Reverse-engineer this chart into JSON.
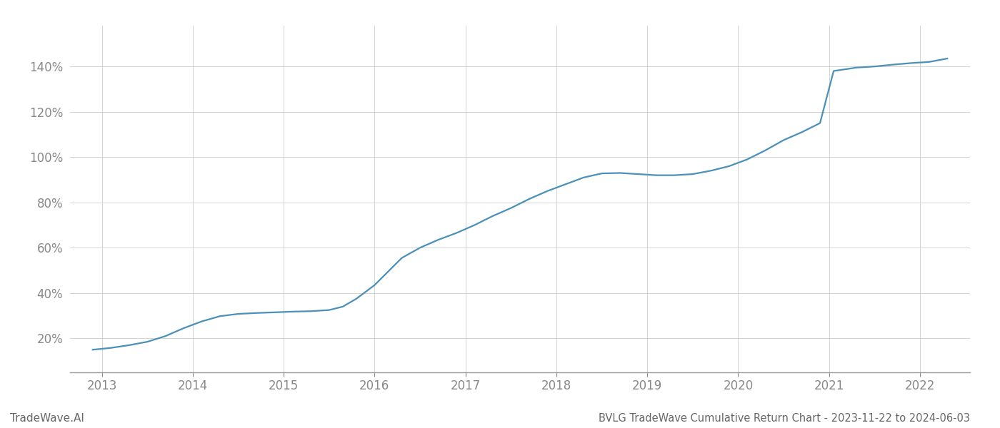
{
  "title": "BVLG TradeWave Cumulative Return Chart - 2023-11-22 to 2024-06-03",
  "watermark": "TradeWave.AI",
  "line_color": "#4a90b8",
  "background_color": "#ffffff",
  "grid_color": "#cccccc",
  "x_years": [
    2013,
    2014,
    2015,
    2016,
    2017,
    2018,
    2019,
    2020,
    2021,
    2022
  ],
  "data_points": [
    [
      2012.9,
      0.15
    ],
    [
      2013.1,
      0.158
    ],
    [
      2013.3,
      0.17
    ],
    [
      2013.5,
      0.185
    ],
    [
      2013.7,
      0.21
    ],
    [
      2013.9,
      0.245
    ],
    [
      2014.1,
      0.275
    ],
    [
      2014.3,
      0.298
    ],
    [
      2014.5,
      0.308
    ],
    [
      2014.7,
      0.312
    ],
    [
      2014.9,
      0.315
    ],
    [
      2015.1,
      0.318
    ],
    [
      2015.3,
      0.32
    ],
    [
      2015.5,
      0.325
    ],
    [
      2015.65,
      0.34
    ],
    [
      2015.8,
      0.375
    ],
    [
      2016.0,
      0.435
    ],
    [
      2016.15,
      0.495
    ],
    [
      2016.3,
      0.555
    ],
    [
      2016.5,
      0.6
    ],
    [
      2016.7,
      0.635
    ],
    [
      2016.9,
      0.665
    ],
    [
      2017.1,
      0.7
    ],
    [
      2017.3,
      0.74
    ],
    [
      2017.5,
      0.775
    ],
    [
      2017.7,
      0.815
    ],
    [
      2017.9,
      0.85
    ],
    [
      2018.1,
      0.88
    ],
    [
      2018.3,
      0.91
    ],
    [
      2018.5,
      0.928
    ],
    [
      2018.7,
      0.93
    ],
    [
      2018.9,
      0.925
    ],
    [
      2019.1,
      0.92
    ],
    [
      2019.3,
      0.92
    ],
    [
      2019.5,
      0.925
    ],
    [
      2019.7,
      0.94
    ],
    [
      2019.9,
      0.96
    ],
    [
      2020.1,
      0.99
    ],
    [
      2020.3,
      1.03
    ],
    [
      2020.5,
      1.075
    ],
    [
      2020.7,
      1.11
    ],
    [
      2020.9,
      1.15
    ],
    [
      2021.05,
      1.38
    ],
    [
      2021.3,
      1.395
    ],
    [
      2021.5,
      1.4
    ],
    [
      2021.7,
      1.408
    ],
    [
      2021.9,
      1.415
    ],
    [
      2022.1,
      1.42
    ],
    [
      2022.3,
      1.435
    ]
  ],
  "ylim": [
    0.05,
    1.58
  ],
  "yticks": [
    0.2,
    0.4,
    0.6,
    0.8,
    1.0,
    1.2,
    1.4
  ],
  "xlim": [
    2012.65,
    2022.55
  ],
  "title_fontsize": 10.5,
  "watermark_fontsize": 11,
  "tick_fontsize": 12,
  "line_width": 1.6,
  "axis_color": "#999999",
  "tick_color": "#888888",
  "title_color": "#666666",
  "watermark_color": "#666666"
}
